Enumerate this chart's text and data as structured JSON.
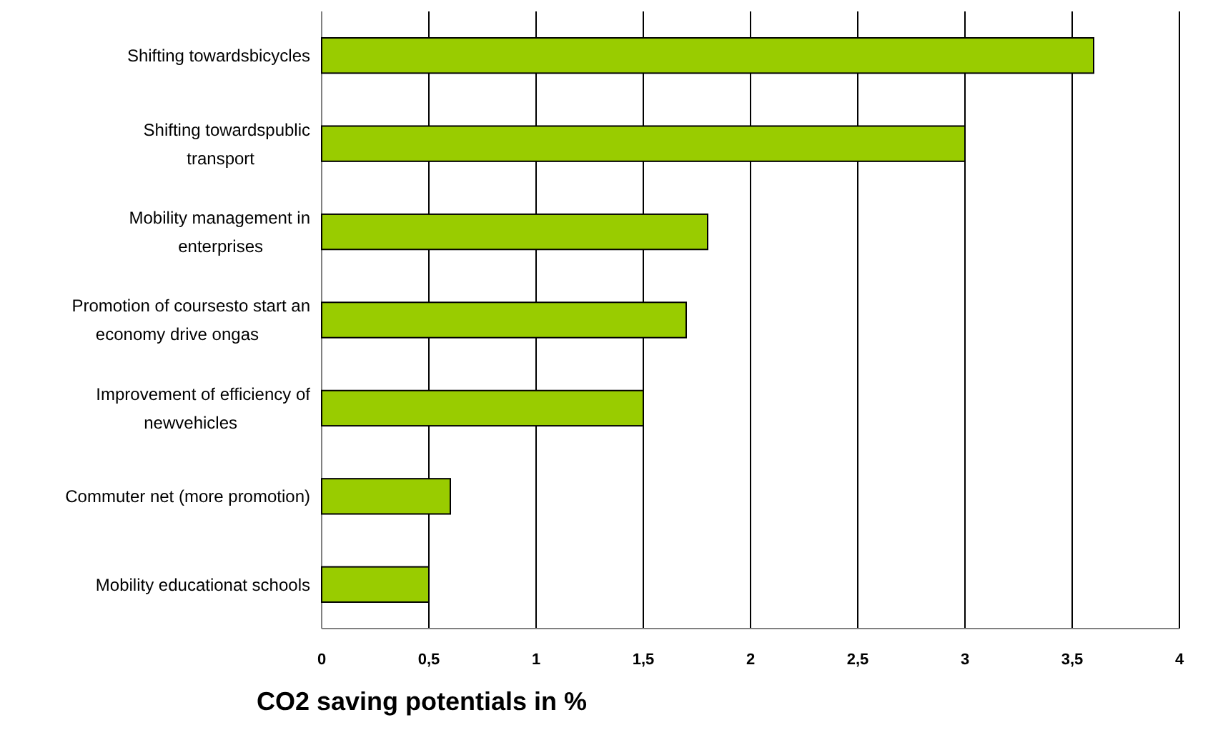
{
  "chart_data": {
    "type": "bar",
    "orientation": "horizontal",
    "xlabel": "CO2 saving potentials in %",
    "categories": [
      "Shifting towardsbicycles",
      "Shifting towardspublic transport",
      "Mobility management in enterprises",
      "Promotion of coursesto start an economy drive ongas",
      "Improvement of efficiency of newvehicles",
      "Commuter net (more promotion)",
      "Mobility educationat schools"
    ],
    "values": [
      3.6,
      3.0,
      1.8,
      1.7,
      1.5,
      0.6,
      0.5
    ],
    "color": "#99cc00",
    "xlim": [
      0,
      4
    ],
    "xticks": [
      0,
      {
        "value": 0.5,
        "label": "0,5"
      },
      1,
      {
        "value": 1.5,
        "label": "1,5"
      },
      2,
      {
        "value": 2.5,
        "label": "2,5"
      },
      3,
      {
        "value": 3.5,
        "label": "3,5"
      },
      4
    ],
    "grid": "x"
  }
}
